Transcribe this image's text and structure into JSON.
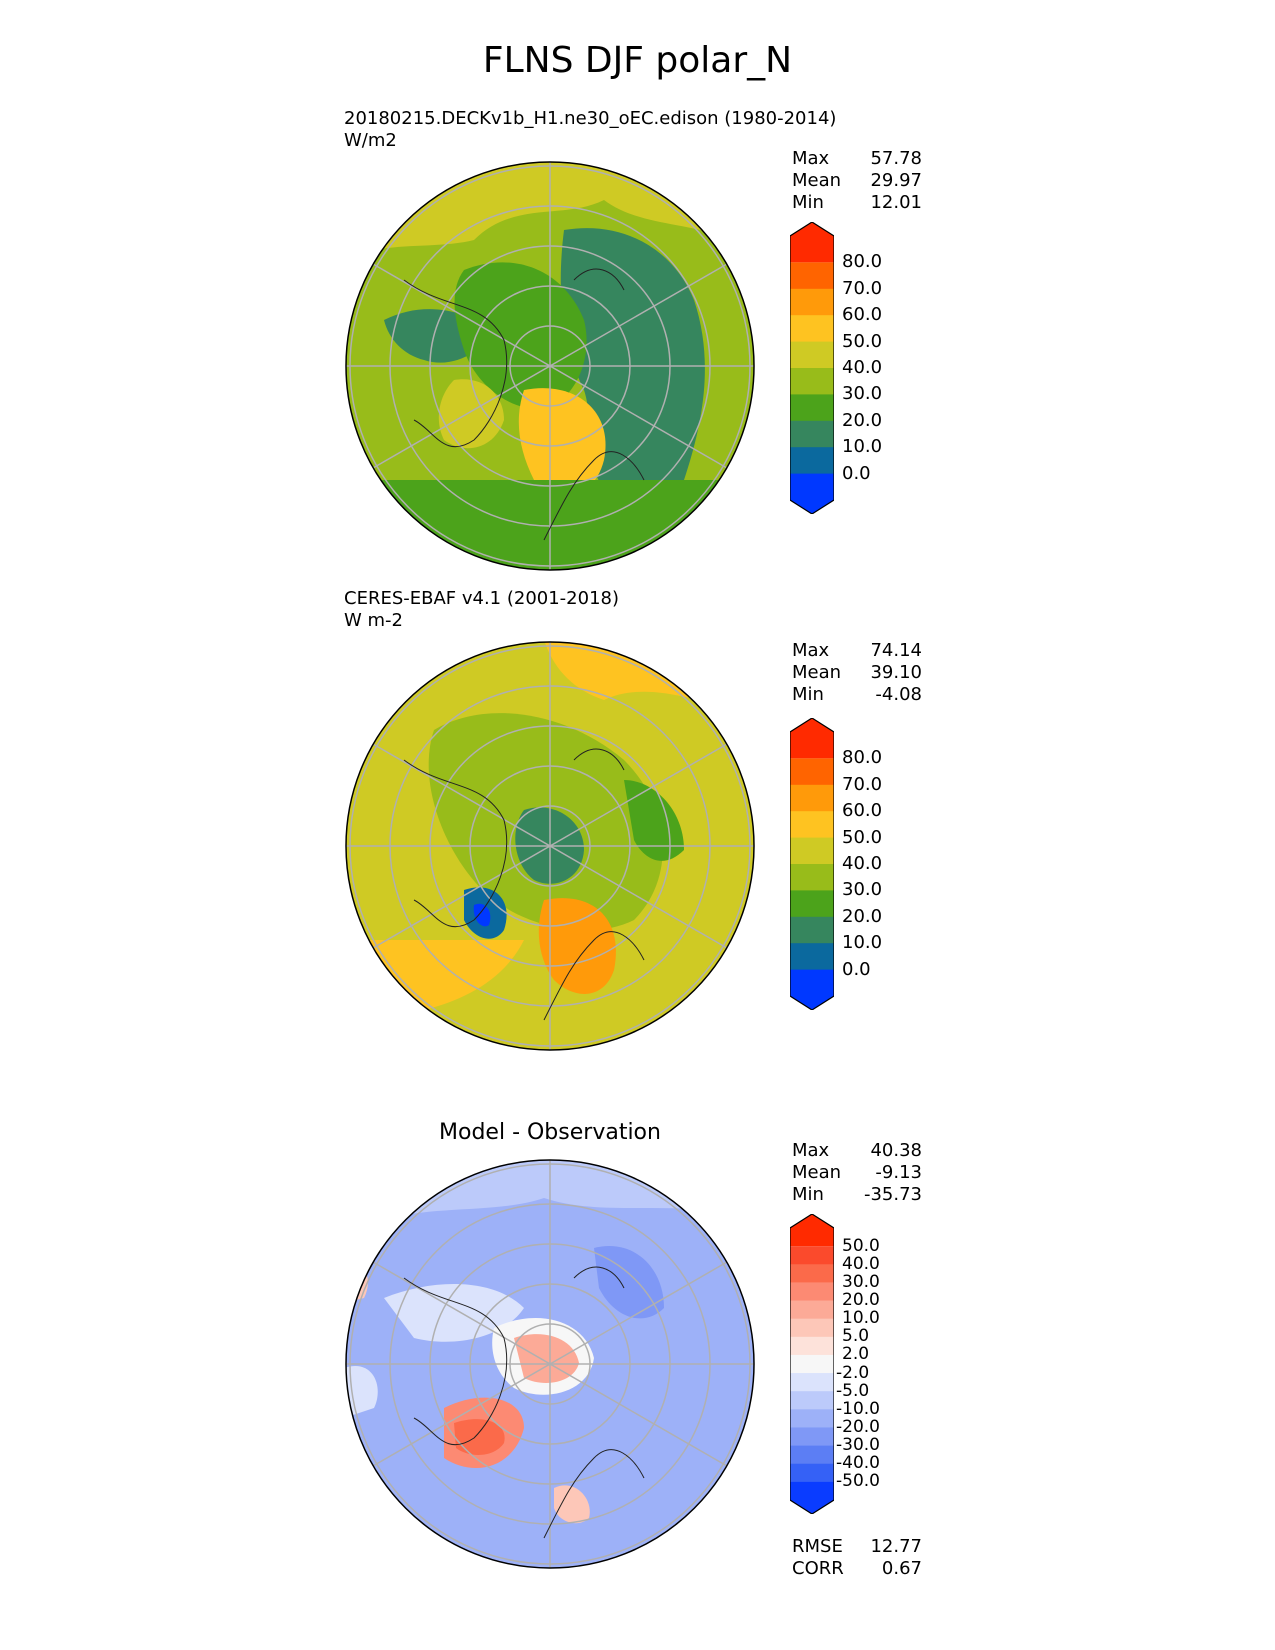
{
  "title": "FLNS DJF polar_N",
  "panels": [
    {
      "title_line1": "20180215.DECKv1b_H1.ne30_oEC.edison (1980-2014)",
      "title_line2": "W/m2",
      "stats": [
        {
          "label": "Max",
          "value": "57.78"
        },
        {
          "label": "Mean",
          "value": "29.97"
        },
        {
          "label": "Min",
          "value": "12.01"
        }
      ],
      "colorbar": {
        "labels": [
          "80.0",
          "70.0",
          "60.0",
          "50.0",
          "40.0",
          "30.0",
          "20.0",
          "10.0",
          "0.0"
        ],
        "colors": [
          "#ff2a00",
          "#ff6400",
          "#ff9a0a",
          "#fec321",
          "#cfca24",
          "#98bc1a",
          "#4ca31b",
          "#36865e",
          "#0b699e",
          "#0038ff"
        ]
      }
    },
    {
      "title_line1": "CERES-EBAF v4.1 (2001-2018)",
      "title_line2": "W m-2",
      "stats": [
        {
          "label": "Max",
          "value": "74.14"
        },
        {
          "label": "Mean",
          "value": "39.10"
        },
        {
          "label": "Min",
          "value": "-4.08"
        }
      ],
      "colorbar": {
        "labels": [
          "80.0",
          "70.0",
          "60.0",
          "50.0",
          "40.0",
          "30.0",
          "20.0",
          "10.0",
          "0.0"
        ],
        "colors": [
          "#ff2a00",
          "#ff6400",
          "#ff9a0a",
          "#fec321",
          "#cfca24",
          "#98bc1a",
          "#4ca31b",
          "#36865e",
          "#0b699e",
          "#0038ff"
        ]
      }
    },
    {
      "title_center": "Model - Observation",
      "stats": [
        {
          "label": "Max",
          "value": "40.38"
        },
        {
          "label": "Mean",
          "value": "-9.13"
        },
        {
          "label": "Min",
          "value": "-35.73"
        }
      ],
      "colorbar": {
        "labels": [
          "50.0",
          "40.0",
          "30.0",
          "20.0",
          "10.0",
          "5.0",
          "2.0",
          "-2.0",
          "-5.0",
          "-10.0",
          "-20.0",
          "-30.0",
          "-40.0",
          "-50.0"
        ],
        "colors": [
          "#ff2a00",
          "#fb4a2c",
          "#fb6a4a",
          "#fc8a73",
          "#fcaa97",
          "#fdc7b8",
          "#fde2da",
          "#f7f7f7",
          "#dbe3fc",
          "#bccafa",
          "#9db1f8",
          "#7f98f6",
          "#5c7ef4",
          "#3561f6",
          "#0a3cff"
        ]
      },
      "footer_stats": [
        {
          "label": "RMSE",
          "value": "12.77"
        },
        {
          "label": "CORR",
          "value": "0.67"
        }
      ]
    }
  ]
}
